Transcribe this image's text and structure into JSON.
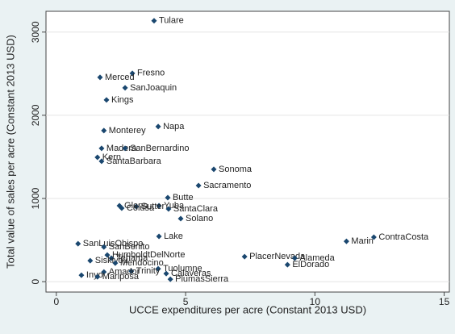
{
  "chart_data": {
    "type": "scatter",
    "x_label": "UCCE expenditures per acre (Constant 2013 USD)",
    "y_label": "Total value of sales per acre (Constant 2013 USD)",
    "color": "#1a476f",
    "grid": true,
    "xlim": [
      -0.4,
      15.2
    ],
    "ylim": [
      -125,
      3250
    ],
    "xticks": [
      0,
      5,
      10,
      15
    ],
    "yticks": [
      0,
      1000,
      2000,
      3000
    ],
    "points": [
      {
        "label": "Tulare",
        "x": 3.78,
        "y": 3136
      },
      {
        "label": "Fresno",
        "x": 2.94,
        "y": 2505
      },
      {
        "label": "Merced",
        "x": 1.69,
        "y": 2456
      },
      {
        "label": "SanJoaquin",
        "x": 2.66,
        "y": 2330
      },
      {
        "label": "Kings",
        "x": 1.94,
        "y": 2184
      },
      {
        "label": "Napa",
        "x": 3.94,
        "y": 1864
      },
      {
        "label": "Monterey",
        "x": 1.84,
        "y": 1816
      },
      {
        "label": "Madera",
        "x": 1.75,
        "y": 1602
      },
      {
        "label": "SanBernardino",
        "x": 2.66,
        "y": 1602
      },
      {
        "label": "Kern",
        "x": 1.59,
        "y": 1495
      },
      {
        "label": "SantaBarbara",
        "x": 1.75,
        "y": 1447
      },
      {
        "label": "Sonoma",
        "x": 6.09,
        "y": 1350
      },
      {
        "label": "Sacramento",
        "x": 5.5,
        "y": 1155
      },
      {
        "label": "Butte",
        "x": 4.31,
        "y": 1010
      },
      {
        "label": "Yuba",
        "x": 3.97,
        "y": 913
      },
      {
        "label": "SantaClara",
        "x": 4.34,
        "y": 874
      },
      {
        "label": "Sutter",
        "x": 3.09,
        "y": 903
      },
      {
        "label": "Glenn",
        "x": 2.44,
        "y": 913
      },
      {
        "label": "Colusa",
        "x": 2.53,
        "y": 884
      },
      {
        "label": "Solano",
        "x": 4.81,
        "y": 757
      },
      {
        "label": "Lake",
        "x": 3.97,
        "y": 544
      },
      {
        "label": "Marin",
        "x": 11.22,
        "y": 485
      },
      {
        "label": "ContraCosta",
        "x": 12.28,
        "y": 534
      },
      {
        "label": "SanLuisObispo",
        "x": 0.84,
        "y": 456
      },
      {
        "label": "SanBenito",
        "x": 1.84,
        "y": 417
      },
      {
        "label": "PlacerNevada",
        "x": 7.28,
        "y": 301
      },
      {
        "label": "Alameda",
        "x": 9.22,
        "y": 282
      },
      {
        "label": "ElDorado",
        "x": 8.94,
        "y": 204
      },
      {
        "label": "HumboldtDelNorte",
        "x": 1.97,
        "y": 320
      },
      {
        "label": "Tehama",
        "x": 2.13,
        "y": 282
      },
      {
        "label": "Siskiyou",
        "x": 1.31,
        "y": 252
      },
      {
        "label": "Mendocino",
        "x": 2.28,
        "y": 223
      },
      {
        "label": "Tuolumne",
        "x": 3.94,
        "y": 155
      },
      {
        "label": "Trinity",
        "x": 2.9,
        "y": 126
      },
      {
        "label": "Amador",
        "x": 1.84,
        "y": 116
      },
      {
        "label": "Calaveras",
        "x": 4.25,
        "y": 97
      },
      {
        "label": "Inyo",
        "x": 0.97,
        "y": 78
      },
      {
        "label": "Mariposa",
        "x": 1.59,
        "y": 58
      },
      {
        "label": "PlumasSierra",
        "x": 4.41,
        "y": 29
      }
    ]
  }
}
